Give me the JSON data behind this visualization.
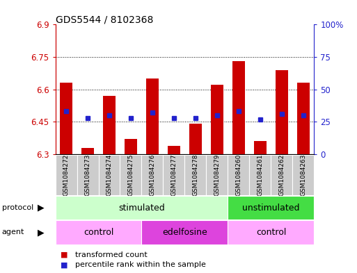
{
  "title": "GDS5544 / 8102368",
  "samples": [
    "GSM1084272",
    "GSM1084273",
    "GSM1084274",
    "GSM1084275",
    "GSM1084276",
    "GSM1084277",
    "GSM1084278",
    "GSM1084279",
    "GSM1084260",
    "GSM1084261",
    "GSM1084262",
    "GSM1084263"
  ],
  "bar_values": [
    6.63,
    6.33,
    6.57,
    6.37,
    6.65,
    6.34,
    6.44,
    6.62,
    6.73,
    6.36,
    6.69,
    6.63
  ],
  "percentile_values": [
    33,
    28,
    30,
    28,
    32,
    28,
    28,
    30,
    33,
    27,
    31,
    30
  ],
  "bar_bottom": 6.3,
  "ylim": [
    6.3,
    6.9
  ],
  "yticks": [
    6.3,
    6.45,
    6.6,
    6.75,
    6.9
  ],
  "ytick_labels": [
    "6.3",
    "6.45",
    "6.6",
    "6.75",
    "6.9"
  ],
  "right_yticks": [
    0,
    25,
    50,
    75,
    100
  ],
  "right_ytick_labels": [
    "0",
    "25",
    "50",
    "75",
    "100%"
  ],
  "bar_color": "#cc0000",
  "percentile_color": "#2222cc",
  "grid_color": "#000000",
  "protocol_groups": [
    {
      "label": "stimulated",
      "start": 0,
      "end": 8,
      "color": "#ccffcc"
    },
    {
      "label": "unstimulated",
      "start": 8,
      "end": 12,
      "color": "#44dd44"
    }
  ],
  "agent_groups": [
    {
      "label": "control",
      "start": 0,
      "end": 4,
      "color": "#ffaaff"
    },
    {
      "label": "edelfosine",
      "start": 4,
      "end": 8,
      "color": "#dd44dd"
    },
    {
      "label": "control",
      "start": 8,
      "end": 12,
      "color": "#ffaaff"
    }
  ],
  "legend_items": [
    {
      "label": "transformed count",
      "color": "#cc0000"
    },
    {
      "label": "percentile rank within the sample",
      "color": "#2222cc"
    }
  ],
  "left_axis_color": "#cc0000",
  "right_axis_color": "#2222cc",
  "bg_color": "#ffffff",
  "plot_bg_color": "#ffffff",
  "xtick_bg_color": "#cccccc",
  "grid_yticks": [
    6.45,
    6.6,
    6.75
  ]
}
